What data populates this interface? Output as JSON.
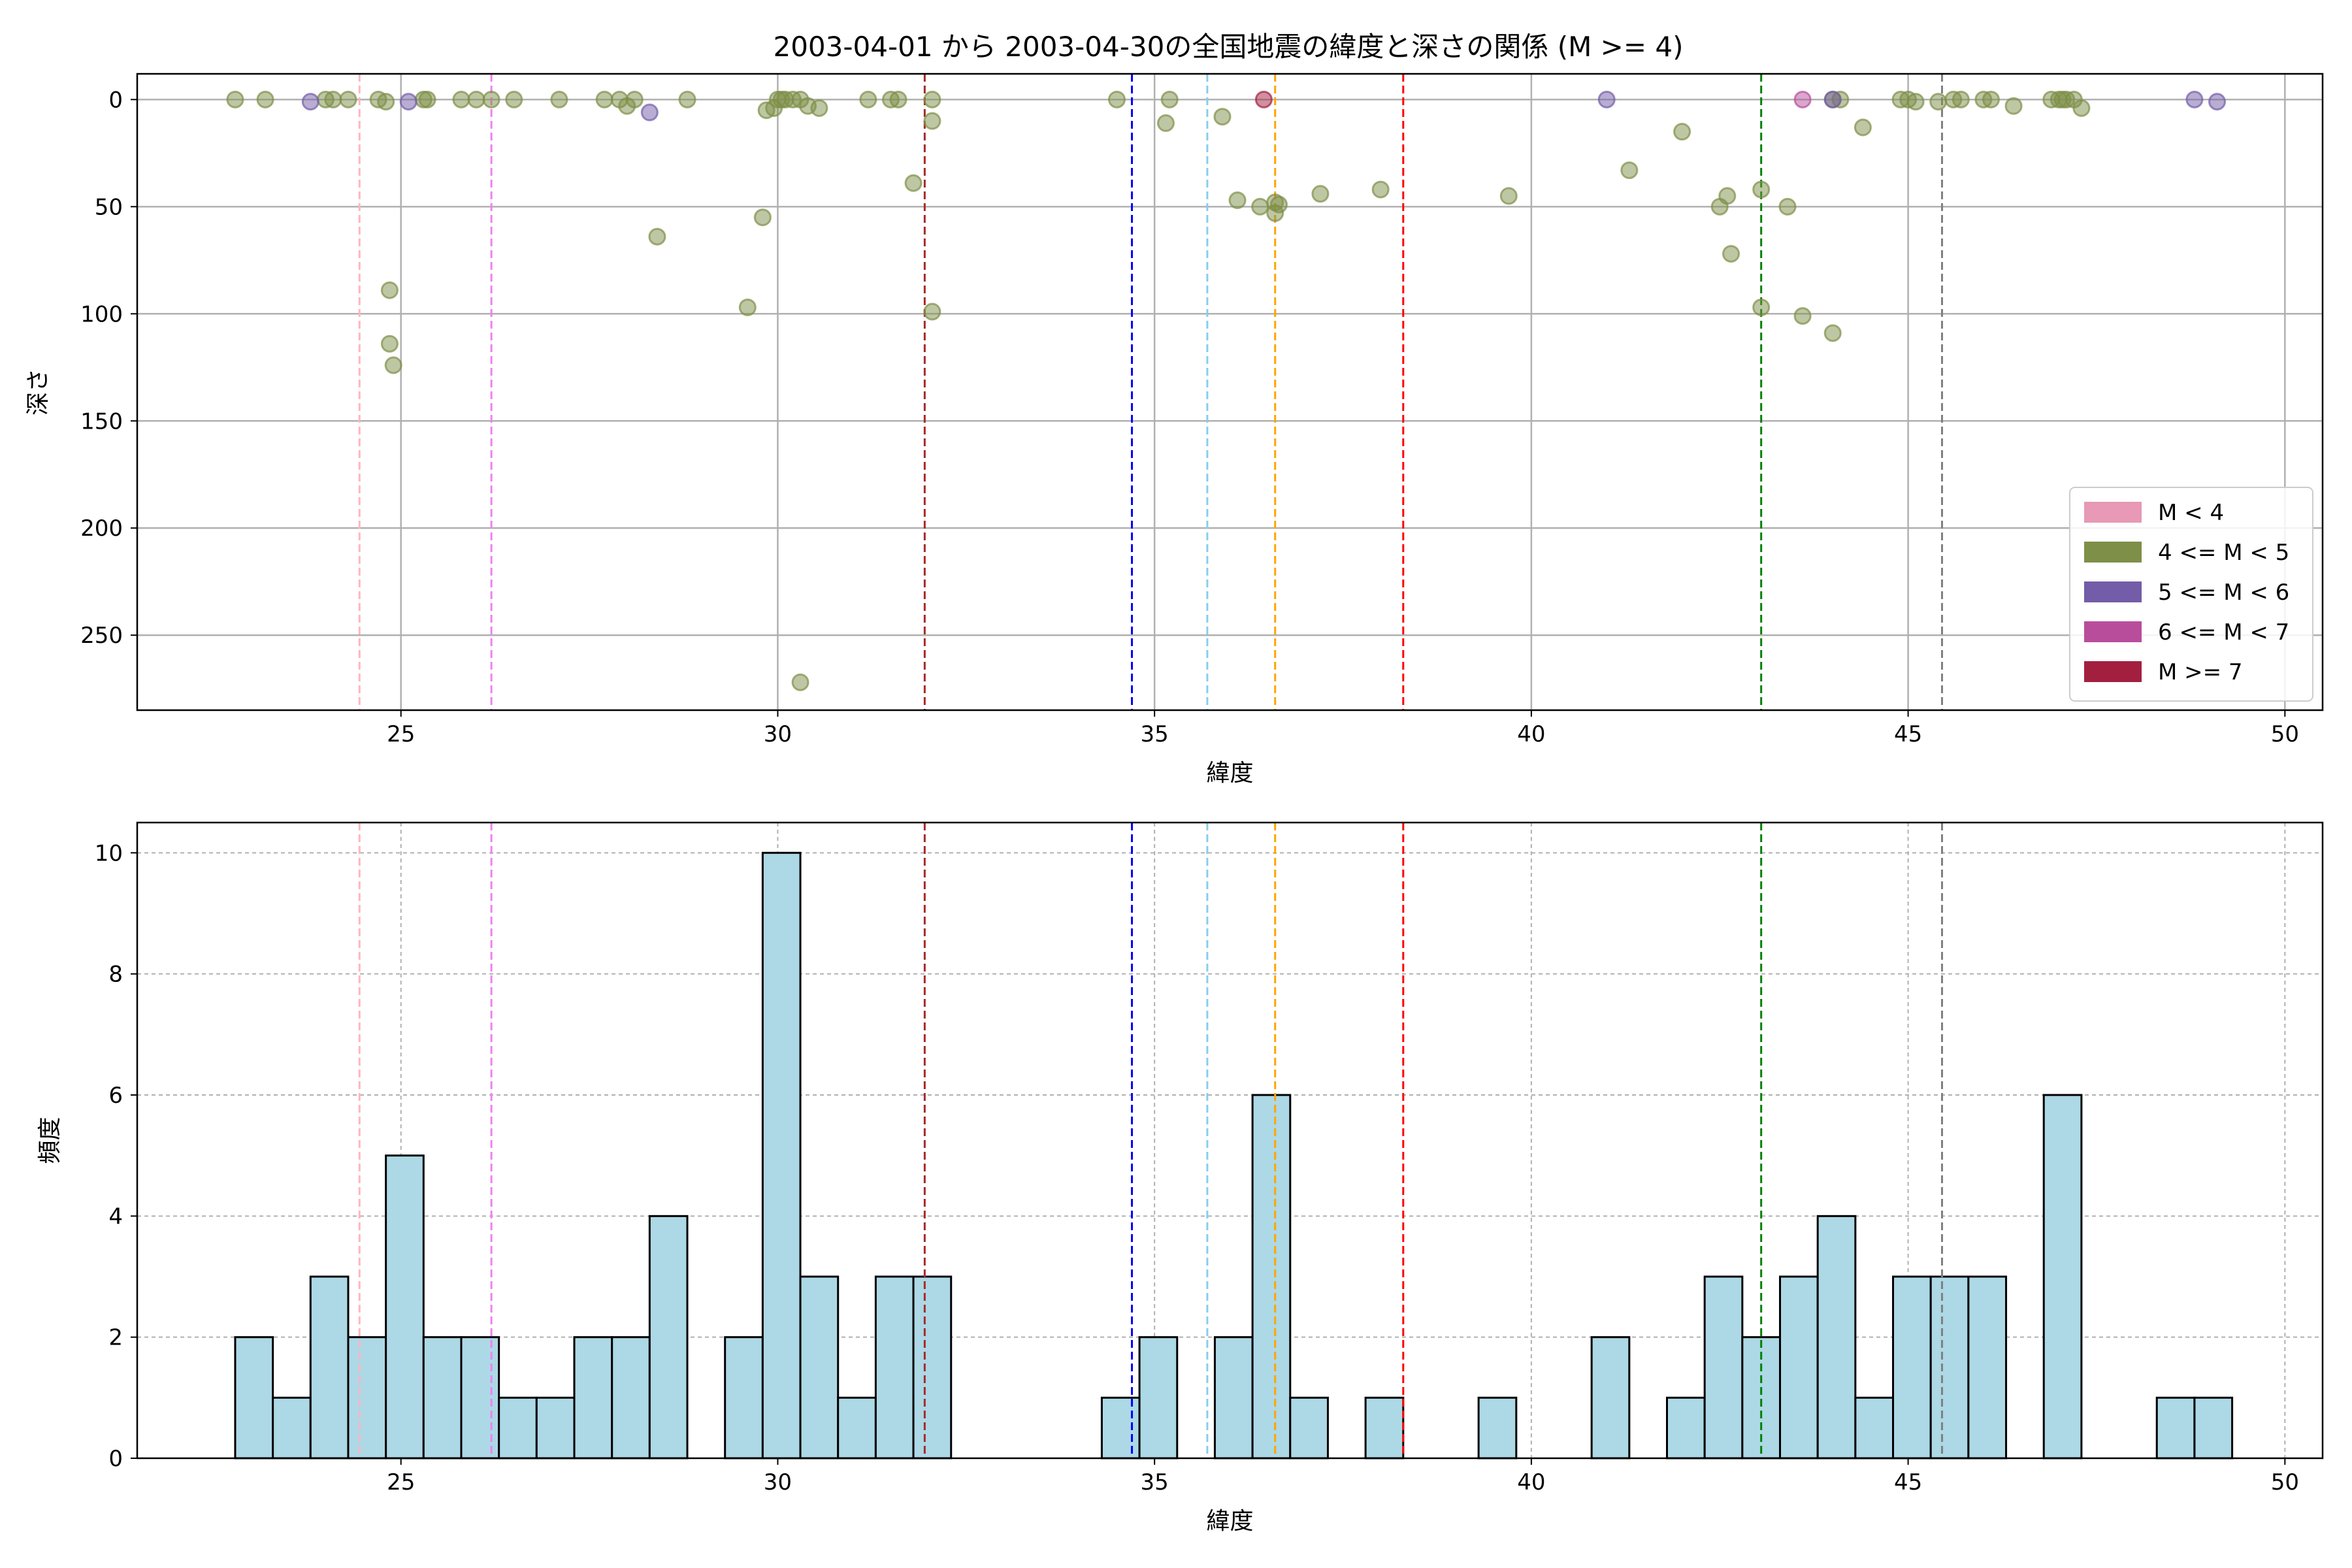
{
  "chart_data": [
    {
      "type": "scatter",
      "title": "2003-04-01 から 2003-04-30の全国地震の緯度と深さの関係 (M >= 4)",
      "xlabel": "緯度",
      "ylabel": "深さ",
      "xlim": [
        21.5,
        50.5
      ],
      "ylim": [
        285,
        -12
      ],
      "y_inverted": true,
      "xticks": [
        25,
        30,
        35,
        40,
        45,
        50
      ],
      "yticks": [
        0,
        50,
        100,
        150,
        200,
        250
      ],
      "grid": true,
      "legend": {
        "placement": "lower-right",
        "entries": [
          {
            "label": "M < 4",
            "color": "#e799b5"
          },
          {
            "label": "4 <= M < 5",
            "color": "#7e8f48"
          },
          {
            "label": "5 <= M < 6",
            "color": "#735ca8"
          },
          {
            "label": "6 <= M < 7",
            "color": "#b84d9c"
          },
          {
            "label": "M >= 7",
            "color": "#a31f40"
          }
        ]
      },
      "reference_lines": [
        {
          "x": 24.45,
          "color": "#ffb6c1"
        },
        {
          "x": 26.2,
          "color": "#ee82ee"
        },
        {
          "x": 31.95,
          "color": "#a52a2a"
        },
        {
          "x": 34.7,
          "color": "#0000ff"
        },
        {
          "x": 35.7,
          "color": "#87ceeb"
        },
        {
          "x": 36.6,
          "color": "#ffa500"
        },
        {
          "x": 38.3,
          "color": "#ff0000"
        },
        {
          "x": 43.05,
          "color": "#008000"
        },
        {
          "x": 45.45,
          "color": "#808080"
        }
      ],
      "series": [
        {
          "label": "4 <= M < 5",
          "color": "#7e8f48",
          "points": [
            [
              22.8,
              0
            ],
            [
              23.2,
              0
            ],
            [
              24.0,
              0
            ],
            [
              24.1,
              0
            ],
            [
              24.3,
              0
            ],
            [
              24.7,
              0
            ],
            [
              24.8,
              1
            ],
            [
              24.85,
              89
            ],
            [
              24.85,
              114
            ],
            [
              24.9,
              124
            ],
            [
              25.3,
              0
            ],
            [
              25.35,
              0
            ],
            [
              25.8,
              0
            ],
            [
              26.0,
              0
            ],
            [
              26.2,
              0
            ],
            [
              26.5,
              0
            ],
            [
              27.1,
              0
            ],
            [
              27.7,
              0
            ],
            [
              27.9,
              0
            ],
            [
              28.0,
              3
            ],
            [
              28.1,
              0
            ],
            [
              28.4,
              64
            ],
            [
              28.8,
              0
            ],
            [
              29.6,
              97
            ],
            [
              29.8,
              55
            ],
            [
              29.85,
              5
            ],
            [
              29.95,
              4
            ],
            [
              30.0,
              0
            ],
            [
              30.05,
              0
            ],
            [
              30.1,
              0
            ],
            [
              30.2,
              0
            ],
            [
              30.3,
              0
            ],
            [
              30.4,
              3
            ],
            [
              30.3,
              272
            ],
            [
              30.55,
              4
            ],
            [
              31.2,
              0
            ],
            [
              31.5,
              0
            ],
            [
              31.6,
              0
            ],
            [
              31.8,
              39
            ],
            [
              32.05,
              0
            ],
            [
              32.05,
              10
            ],
            [
              32.05,
              99
            ],
            [
              34.5,
              0
            ],
            [
              35.2,
              0
            ],
            [
              35.15,
              11
            ],
            [
              35.9,
              8
            ],
            [
              36.1,
              47
            ],
            [
              36.4,
              50
            ],
            [
              36.6,
              48
            ],
            [
              36.6,
              53
            ],
            [
              36.65,
              49
            ],
            [
              37.2,
              44
            ],
            [
              38.0,
              42
            ],
            [
              39.7,
              45
            ],
            [
              41.3,
              33
            ],
            [
              42.0,
              15
            ],
            [
              42.5,
              50
            ],
            [
              42.6,
              45
            ],
            [
              42.65,
              72
            ],
            [
              43.05,
              97
            ],
            [
              43.05,
              42
            ],
            [
              43.4,
              50
            ],
            [
              43.6,
              101
            ],
            [
              44.0,
              109
            ],
            [
              44.0,
              0
            ],
            [
              44.1,
              0
            ],
            [
              44.4,
              13
            ],
            [
              44.9,
              0
            ],
            [
              45.0,
              0
            ],
            [
              45.1,
              1
            ],
            [
              45.4,
              1
            ],
            [
              45.6,
              0
            ],
            [
              45.7,
              0
            ],
            [
              46.0,
              0
            ],
            [
              46.1,
              0
            ],
            [
              46.4,
              3
            ],
            [
              46.9,
              0
            ],
            [
              47.0,
              0
            ],
            [
              47.05,
              0
            ],
            [
              47.1,
              0
            ],
            [
              47.2,
              0
            ],
            [
              47.3,
              4
            ]
          ]
        },
        {
          "label": "5 <= M < 6",
          "color": "#735ca8",
          "points": [
            [
              23.8,
              1
            ],
            [
              25.1,
              1
            ],
            [
              28.3,
              6
            ],
            [
              41.0,
              0
            ],
            [
              44.0,
              0
            ],
            [
              48.8,
              0
            ],
            [
              49.1,
              1
            ]
          ]
        },
        {
          "label": "6 <= M < 7",
          "color": "#b84d9c",
          "points": [
            [
              43.6,
              0
            ]
          ]
        },
        {
          "label": "M >= 7",
          "color": "#a31f40",
          "points": [
            [
              36.45,
              0
            ]
          ]
        }
      ]
    },
    {
      "type": "bar",
      "subtype": "histogram",
      "xlabel": "緯度",
      "ylabel": "頻度",
      "xlim": [
        21.5,
        50.5
      ],
      "ylim": [
        0,
        10.5
      ],
      "xticks": [
        25,
        30,
        35,
        40,
        45,
        50
      ],
      "yticks": [
        0,
        2,
        4,
        6,
        8,
        10
      ],
      "grid": true,
      "bar_color": "#add8e6",
      "bin_start": 22.8,
      "bin_width": 0.5,
      "values": [
        2,
        1,
        3,
        2,
        5,
        2,
        2,
        1,
        1,
        2,
        2,
        4,
        0,
        2,
        10,
        3,
        1,
        3,
        3,
        0,
        0,
        0,
        0,
        1,
        2,
        0,
        2,
        6,
        1,
        0,
        1,
        0,
        0,
        1,
        0,
        0,
        2,
        0,
        1,
        3,
        2,
        3,
        4,
        1,
        3,
        3,
        3,
        0,
        6,
        0,
        0,
        1,
        1
      ],
      "reference_lines": [
        {
          "x": 24.45,
          "color": "#ffb6c1"
        },
        {
          "x": 26.2,
          "color": "#ee82ee"
        },
        {
          "x": 31.95,
          "color": "#a52a2a"
        },
        {
          "x": 34.7,
          "color": "#0000ff"
        },
        {
          "x": 35.7,
          "color": "#87ceeb"
        },
        {
          "x": 36.6,
          "color": "#ffa500"
        },
        {
          "x": 38.3,
          "color": "#ff0000"
        },
        {
          "x": 43.05,
          "color": "#008000"
        },
        {
          "x": 45.45,
          "color": "#808080"
        }
      ]
    }
  ]
}
